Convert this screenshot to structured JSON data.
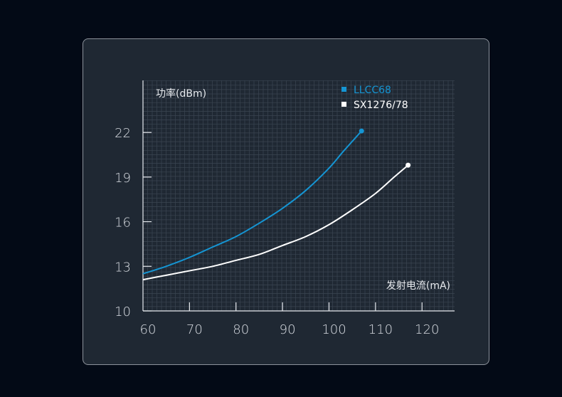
{
  "chart_data": {
    "type": "line",
    "xlabel": "发射电流(mA)",
    "ylabel": "功率(dBm)",
    "xlim": [
      60,
      127
    ],
    "ylim": [
      10,
      25.5
    ],
    "x_ticks": [
      60,
      70,
      80,
      90,
      100,
      110,
      120
    ],
    "y_ticks": [
      10,
      13,
      16,
      19,
      22
    ],
    "grid": true,
    "legend_position": "top-right",
    "series": [
      {
        "name": "LLCC68",
        "color": "#1595d3",
        "x": [
          60,
          65,
          70,
          75,
          80,
          85,
          90,
          95,
          100,
          103,
          105,
          107
        ],
        "y": [
          12.5,
          13.0,
          13.6,
          14.3,
          15.0,
          15.9,
          16.9,
          18.1,
          19.6,
          20.7,
          21.4,
          22.1
        ],
        "end_marker": true
      },
      {
        "name": "SX1276/78",
        "color": "#ffffff",
        "x": [
          60,
          65,
          70,
          75,
          80,
          85,
          90,
          95,
          100,
          105,
          110,
          114,
          117
        ],
        "y": [
          12.1,
          12.4,
          12.7,
          13.0,
          13.4,
          13.8,
          14.4,
          15.0,
          15.8,
          16.8,
          17.9,
          19.0,
          19.8
        ],
        "end_marker": true
      }
    ]
  }
}
